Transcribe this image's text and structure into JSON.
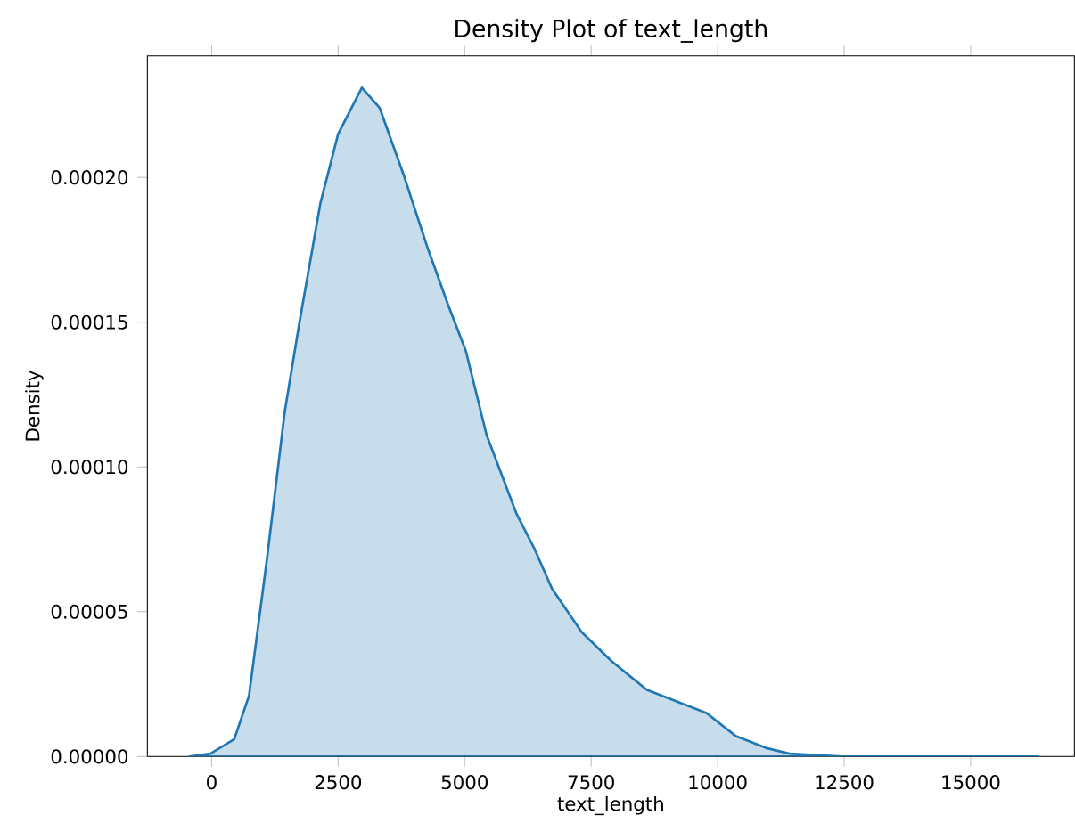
{
  "chart_data": {
    "type": "area",
    "title": "Density Plot of text_length",
    "xlabel": "text_length",
    "ylabel": "Density",
    "color": "#1f77b4",
    "x": [
      -433,
      -24,
      447,
      739,
      1092,
      1444,
      1736,
      2148,
      2500,
      2969,
      3321,
      3792,
      4261,
      4673,
      5025,
      5434,
      6021,
      6373,
      6725,
      7310,
      7897,
      8602,
      9190,
      9778,
      10363,
      10950,
      11419,
      12465,
      16338
    ],
    "values": [
      0,
      1e-06,
      6e-06,
      2.1e-05,
      6.8e-05,
      0.000119,
      0.00015,
      0.000191,
      0.000215,
      0.000231,
      0.000224,
      0.000201,
      0.000176,
      0.000156,
      0.00014,
      0.000111,
      8.4e-05,
      7.2e-05,
      5.8e-05,
      4.3e-05,
      3.3e-05,
      2.3e-05,
      1.9e-05,
      1.5e-05,
      7e-06,
      3e-06,
      1e-06,
      0,
      0
    ],
    "xlim": [
      -1270,
      17050
    ],
    "ylim": [
      0,
      0.000242
    ],
    "xticks": [
      0,
      2500,
      5000,
      7500,
      10000,
      12500,
      15000
    ],
    "yticks": [
      {
        "value": 0,
        "label": "0.00000"
      },
      {
        "value": 5e-05,
        "label": "0.00005"
      },
      {
        "value": 0.0001,
        "label": "0.00010"
      },
      {
        "value": 0.00015,
        "label": "0.00015"
      },
      {
        "value": 0.0002,
        "label": "0.00020"
      }
    ],
    "grid": false
  }
}
